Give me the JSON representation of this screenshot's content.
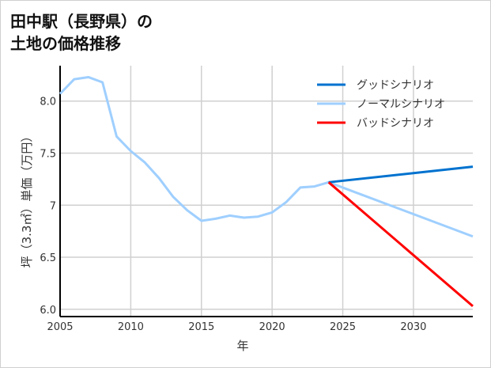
{
  "title_line1": "田中駅（長野県）の",
  "title_line2": "土地の価格推移",
  "chart_data": {
    "type": "line",
    "xlabel": "年",
    "ylabel": "坪（3.3㎡）単価（万円）",
    "xlim": [
      2005,
      2034.2
    ],
    "ylim": [
      5.93,
      8.34
    ],
    "xticks": [
      2005,
      2010,
      2015,
      2020,
      2025,
      2030
    ],
    "yticks": [
      6.0,
      6.5,
      7.0,
      7.5,
      8.0
    ],
    "ytick_labels": [
      "6.0",
      "6.5",
      "7",
      "7.5",
      "8.0"
    ],
    "grid": true,
    "legend_position": "top-right",
    "series": [
      {
        "name": "グッドシナリオ",
        "color": "#0072cf",
        "x": [
          2024,
          2034.2
        ],
        "y": [
          7.22,
          7.37
        ]
      },
      {
        "name": "ノーマルシナリオ",
        "color": "#9fcfff",
        "x": [
          2005,
          2006,
          2007,
          2008,
          2009,
          2010,
          2011,
          2012,
          2013,
          2014,
          2015,
          2016,
          2017,
          2018,
          2019,
          2020,
          2021,
          2022,
          2023,
          2024,
          2034.2
        ],
        "y": [
          8.07,
          8.21,
          8.23,
          8.18,
          7.66,
          7.52,
          7.41,
          7.26,
          7.08,
          6.95,
          6.85,
          6.87,
          6.9,
          6.88,
          6.89,
          6.93,
          7.03,
          7.17,
          7.18,
          7.22,
          6.7
        ]
      },
      {
        "name": "バッドシナリオ",
        "color": "#ff0000",
        "x": [
          2024,
          2034.2
        ],
        "y": [
          7.22,
          6.03
        ]
      }
    ]
  }
}
